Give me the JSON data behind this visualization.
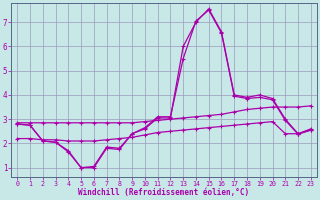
{
  "xlabel": "Windchill (Refroidissement éolien,°C)",
  "bg_color": "#c8e8e8",
  "grid_color": "#9999bb",
  "line_color": "#aa00aa",
  "x_ticks": [
    0,
    1,
    2,
    3,
    4,
    5,
    6,
    7,
    8,
    9,
    10,
    11,
    12,
    13,
    14,
    15,
    16,
    17,
    18,
    19,
    20,
    21,
    22,
    23
  ],
  "y_ticks": [
    1,
    2,
    3,
    4,
    5,
    6,
    7
  ],
  "ylim": [
    0.6,
    7.8
  ],
  "xlim": [
    -0.5,
    23.5
  ],
  "line1_x": [
    0,
    1,
    2,
    3,
    4,
    5,
    6,
    7,
    8,
    9,
    10,
    11,
    12,
    13,
    14,
    15,
    16,
    17,
    18,
    19,
    20,
    21,
    22,
    23
  ],
  "line1_y": [
    2.85,
    2.85,
    2.85,
    2.85,
    2.85,
    2.85,
    2.85,
    2.85,
    2.85,
    2.85,
    2.9,
    2.95,
    3.0,
    3.05,
    3.1,
    3.15,
    3.2,
    3.3,
    3.4,
    3.45,
    3.5,
    3.5,
    3.5,
    3.55
  ],
  "line2_x": [
    0,
    1,
    2,
    3,
    4,
    5,
    6,
    7,
    8,
    9,
    10,
    11,
    12,
    13,
    14,
    15,
    16,
    17,
    18,
    19,
    20,
    21,
    22,
    23
  ],
  "line2_y": [
    2.8,
    2.75,
    2.1,
    2.05,
    1.7,
    1.0,
    1.0,
    1.8,
    1.75,
    2.4,
    2.6,
    3.05,
    3.05,
    6.0,
    7.0,
    7.55,
    6.6,
    4.0,
    3.9,
    4.0,
    3.85,
    3.0,
    2.4,
    2.6
  ],
  "line3_x": [
    0,
    1,
    2,
    3,
    4,
    5,
    6,
    7,
    8,
    9,
    10,
    11,
    12,
    13,
    14,
    15,
    16,
    17,
    18,
    19,
    20,
    21,
    22,
    23
  ],
  "line3_y": [
    2.8,
    2.75,
    2.1,
    2.05,
    1.65,
    1.0,
    1.05,
    1.85,
    1.8,
    2.4,
    2.65,
    3.1,
    3.1,
    5.5,
    7.05,
    7.5,
    6.55,
    3.95,
    3.85,
    3.9,
    3.8,
    2.95,
    2.38,
    2.55
  ],
  "line4_x": [
    0,
    1,
    2,
    3,
    4,
    5,
    6,
    7,
    8,
    9,
    10,
    11,
    12,
    13,
    14,
    15,
    16,
    17,
    18,
    19,
    20,
    21,
    22,
    23
  ],
  "line4_y": [
    2.2,
    2.2,
    2.15,
    2.15,
    2.1,
    2.1,
    2.1,
    2.15,
    2.2,
    2.25,
    2.35,
    2.45,
    2.5,
    2.55,
    2.6,
    2.65,
    2.7,
    2.75,
    2.8,
    2.85,
    2.9,
    2.4,
    2.4,
    2.55
  ]
}
